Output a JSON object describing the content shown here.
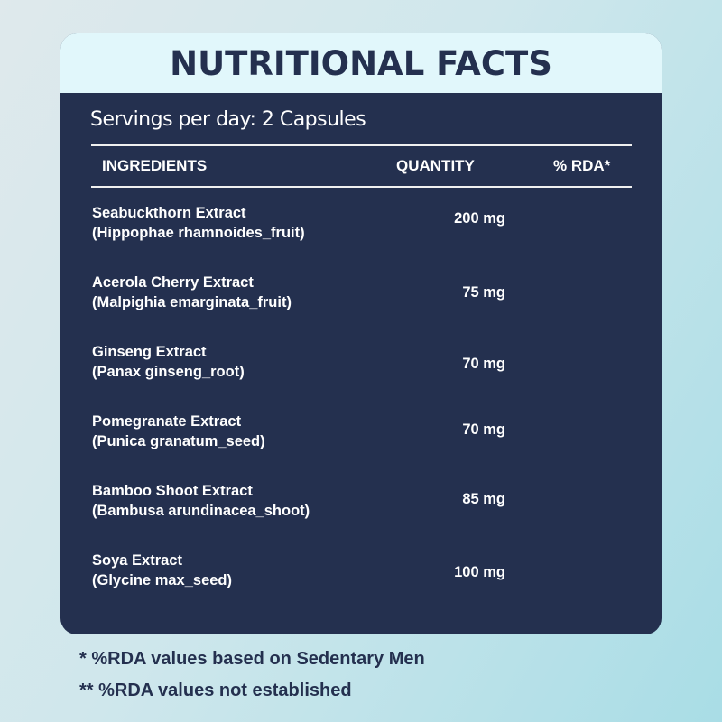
{
  "title": "NUTRITIONAL FACTS",
  "servings": "Servings per day: 2 Capsules",
  "headers": {
    "ingredients": "INGREDIENTS",
    "quantity": "QUANTITY",
    "rda": "% RDA*"
  },
  "rows": [
    {
      "name": "Seabuckthorn Extract",
      "latin": "(Hippophae rhamnoides_fruit)",
      "quantity": "200 mg"
    },
    {
      "name": "Acerola Cherry Extract",
      "latin": "(Malpighia emarginata_fruit)",
      "quantity": "75 mg"
    },
    {
      "name": "Ginseng Extract",
      "latin": "(Panax ginseng_root)",
      "quantity": "70 mg"
    },
    {
      "name": "Pomegranate Extract",
      "latin": "(Punica granatum_seed)",
      "quantity": "70 mg"
    },
    {
      "name": "Bamboo Shoot Extract",
      "latin": "(Bambusa arundinacea_shoot)",
      "quantity": "85 mg"
    },
    {
      "name": "Soya Extract",
      "latin": "(Glycine max_seed)",
      "quantity": "100 mg"
    }
  ],
  "footnotes": [
    "* %RDA values based on Sedentary Men",
    "** %RDA values not established"
  ],
  "colors": {
    "navy": "#24304f",
    "header_bg": "#e1f7fb"
  }
}
